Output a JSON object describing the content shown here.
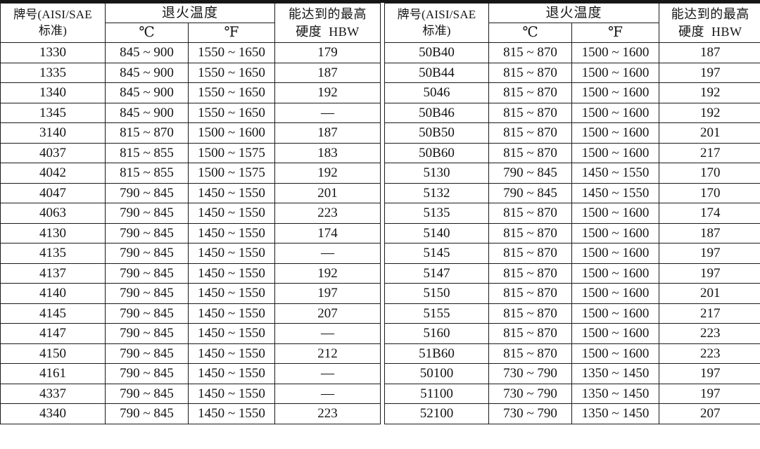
{
  "colors": {
    "background": "#ffffff",
    "border": "#1b1b1b",
    "text": "#141414"
  },
  "table": {
    "header": {
      "grade": "牌号(AISI/SAE\n标准)",
      "anneal_temp": "退火温度",
      "celsius": "℃",
      "fahrenheit": "℉",
      "hardness": "能达到的最高\n硬度  HBW"
    },
    "columns": [
      "grade",
      "celsius",
      "fahrenheit",
      "hardness"
    ],
    "left_rows": [
      [
        "1330",
        "845 ~ 900",
        "1550 ~ 1650",
        "179"
      ],
      [
        "1335",
        "845 ~ 900",
        "1550 ~ 1650",
        "187"
      ],
      [
        "1340",
        "845 ~ 900",
        "1550 ~ 1650",
        "192"
      ],
      [
        "1345",
        "845 ~ 900",
        "1550 ~ 1650",
        "—"
      ],
      [
        "3140",
        "815 ~ 870",
        "1500 ~ 1600",
        "187"
      ],
      [
        "4037",
        "815 ~ 855",
        "1500 ~ 1575",
        "183"
      ],
      [
        "4042",
        "815 ~ 855",
        "1500 ~ 1575",
        "192"
      ],
      [
        "4047",
        "790 ~ 845",
        "1450 ~ 1550",
        "201"
      ],
      [
        "4063",
        "790 ~ 845",
        "1450 ~ 1550",
        "223"
      ],
      [
        "4130",
        "790 ~ 845",
        "1450 ~ 1550",
        "174"
      ],
      [
        "4135",
        "790 ~ 845",
        "1450 ~ 1550",
        "—"
      ],
      [
        "4137",
        "790 ~ 845",
        "1450 ~ 1550",
        "192"
      ],
      [
        "4140",
        "790 ~ 845",
        "1450 ~ 1550",
        "197"
      ],
      [
        "4145",
        "790 ~ 845",
        "1450 ~ 1550",
        "207"
      ],
      [
        "4147",
        "790 ~ 845",
        "1450 ~ 1550",
        "—"
      ],
      [
        "4150",
        "790 ~ 845",
        "1450 ~ 1550",
        "212"
      ],
      [
        "4161",
        "790 ~ 845",
        "1450 ~ 1550",
        "—"
      ],
      [
        "4337",
        "790 ~ 845",
        "1450 ~ 1550",
        "—"
      ],
      [
        "4340",
        "790 ~ 845",
        "1450 ~ 1550",
        "223"
      ]
    ],
    "right_rows": [
      [
        "50B40",
        "815 ~ 870",
        "1500 ~ 1600",
        "187"
      ],
      [
        "50B44",
        "815 ~ 870",
        "1500 ~ 1600",
        "197"
      ],
      [
        "5046",
        "815 ~ 870",
        "1500 ~ 1600",
        "192"
      ],
      [
        "50B46",
        "815 ~ 870",
        "1500 ~ 1600",
        "192"
      ],
      [
        "50B50",
        "815 ~ 870",
        "1500 ~ 1600",
        "201"
      ],
      [
        "50B60",
        "815 ~ 870",
        "1500 ~ 1600",
        "217"
      ],
      [
        "5130",
        "790 ~ 845",
        "1450 ~ 1550",
        "170"
      ],
      [
        "5132",
        "790 ~ 845",
        "1450 ~ 1550",
        "170"
      ],
      [
        "5135",
        "815 ~ 870",
        "1500 ~ 1600",
        "174"
      ],
      [
        "5140",
        "815 ~ 870",
        "1500 ~ 1600",
        "187"
      ],
      [
        "5145",
        "815 ~ 870",
        "1500 ~ 1600",
        "197"
      ],
      [
        "5147",
        "815 ~ 870",
        "1500 ~ 1600",
        "197"
      ],
      [
        "5150",
        "815 ~ 870",
        "1500 ~ 1600",
        "201"
      ],
      [
        "5155",
        "815 ~ 870",
        "1500 ~ 1600",
        "217"
      ],
      [
        "5160",
        "815 ~ 870",
        "1500 ~ 1600",
        "223"
      ],
      [
        "51B60",
        "815 ~ 870",
        "1500 ~ 1600",
        "223"
      ],
      [
        "50100",
        "730 ~ 790",
        "1350 ~ 1450",
        "197"
      ],
      [
        "51100",
        "730 ~ 790",
        "1350 ~ 1450",
        "197"
      ],
      [
        "52100",
        "730 ~ 790",
        "1350 ~ 1450",
        "207"
      ]
    ]
  }
}
